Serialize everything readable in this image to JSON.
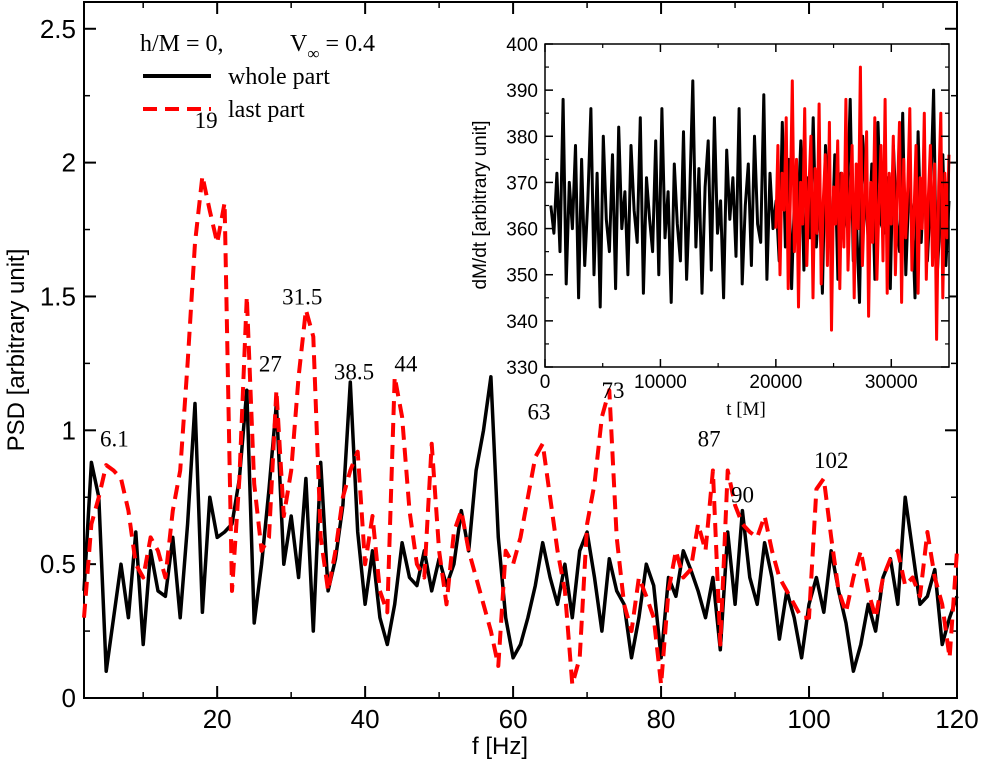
{
  "chart_data": [
    {
      "type": "line",
      "xlabel": "f [Hz]",
      "ylabel": "PSD [arbitrary unit]",
      "xlim": [
        2,
        120
      ],
      "ylim": [
        0,
        2.6
      ],
      "xticks": [
        "20",
        "40",
        "60",
        "80",
        "100",
        "120"
      ],
      "yticks": [
        "0",
        "0.5",
        "1",
        "1.5",
        "2",
        "2.5"
      ],
      "legend_title": "h/M = 0,",
      "legend_param": "V",
      "legend_param_sub": "∞",
      "legend_param_value": " = 0.4",
      "legend_position": "top-left",
      "colors": {
        "whole": "#000000",
        "last": "#ff0000"
      },
      "series": [
        {
          "name": "whole part",
          "style": "solid",
          "x": [
            2,
            3,
            4,
            5,
            6,
            7,
            8,
            9,
            10,
            11,
            12,
            13,
            14,
            15,
            16,
            17,
            18,
            19,
            20,
            21,
            22,
            23,
            24,
            25,
            26,
            27,
            28,
            29,
            30,
            31,
            32,
            33,
            34,
            35,
            36,
            37,
            38,
            39,
            40,
            41,
            42,
            43,
            44,
            45,
            46,
            47,
            48,
            49,
            50,
            51,
            52,
            53,
            54,
            55,
            56,
            57,
            58,
            59,
            60,
            61,
            62,
            63,
            64,
            65,
            66,
            67,
            68,
            69,
            70,
            71,
            72,
            73,
            74,
            75,
            76,
            77,
            78,
            79,
            80,
            81,
            82,
            83,
            84,
            85,
            86,
            87,
            88,
            89,
            90,
            91,
            92,
            93,
            94,
            95,
            96,
            97,
            98,
            99,
            100,
            101,
            102,
            103,
            104,
            105,
            106,
            107,
            108,
            109,
            110,
            111,
            112,
            113,
            114,
            115,
            116,
            117,
            118,
            119,
            120
          ],
          "y": [
            0.4,
            0.88,
            0.75,
            0.1,
            0.3,
            0.5,
            0.3,
            0.62,
            0.2,
            0.55,
            0.4,
            0.38,
            0.6,
            0.3,
            0.65,
            1.1,
            0.32,
            0.75,
            0.6,
            0.62,
            0.65,
            0.82,
            1.15,
            0.28,
            0.5,
            0.78,
            1.1,
            0.5,
            0.68,
            0.45,
            0.82,
            0.25,
            0.88,
            0.4,
            0.52,
            0.72,
            1.18,
            0.62,
            0.35,
            0.55,
            0.3,
            0.2,
            0.35,
            0.58,
            0.45,
            0.42,
            0.55,
            0.4,
            0.52,
            0.42,
            0.5,
            0.7,
            0.55,
            0.85,
            1.0,
            1.2,
            0.6,
            0.3,
            0.15,
            0.2,
            0.3,
            0.42,
            0.58,
            0.45,
            0.35,
            0.5,
            0.3,
            0.55,
            0.62,
            0.45,
            0.25,
            0.52,
            0.4,
            0.35,
            0.15,
            0.3,
            0.5,
            0.42,
            0.15,
            0.45,
            0.38,
            0.55,
            0.48,
            0.4,
            0.3,
            0.45,
            0.18,
            0.62,
            0.35,
            0.7,
            0.45,
            0.35,
            0.58,
            0.45,
            0.22,
            0.4,
            0.3,
            0.15,
            0.35,
            0.45,
            0.32,
            0.55,
            0.4,
            0.28,
            0.1,
            0.2,
            0.35,
            0.25,
            0.45,
            0.52,
            0.35,
            0.75,
            0.55,
            0.35,
            0.38,
            0.48,
            0.2,
            0.3,
            0.38
          ]
        },
        {
          "name": "last part",
          "style": "dashed",
          "x": [
            2,
            3,
            4,
            5,
            6,
            7,
            8,
            9,
            10,
            11,
            12,
            13,
            14,
            15,
            16,
            17,
            18,
            19,
            20,
            21,
            22,
            23,
            24,
            25,
            26,
            27,
            28,
            29,
            30,
            31,
            32,
            33,
            34,
            35,
            36,
            37,
            38,
            39,
            40,
            41,
            42,
            43,
            44,
            45,
            46,
            47,
            48,
            49,
            50,
            51,
            52,
            53,
            54,
            55,
            56,
            57,
            58,
            59,
            60,
            61,
            62,
            63,
            64,
            65,
            66,
            67,
            68,
            69,
            70,
            71,
            72,
            73,
            74,
            75,
            76,
            77,
            78,
            79,
            80,
            81,
            82,
            83,
            84,
            85,
            86,
            87,
            88,
            89,
            90,
            91,
            92,
            93,
            94,
            95,
            96,
            97,
            98,
            99,
            100,
            101,
            102,
            103,
            104,
            105,
            106,
            107,
            108,
            109,
            110,
            111,
            112,
            113,
            114,
            115,
            116,
            117,
            118,
            119,
            120
          ],
          "y": [
            0.3,
            0.65,
            0.75,
            0.87,
            0.85,
            0.82,
            0.7,
            0.5,
            0.45,
            0.6,
            0.55,
            0.45,
            0.7,
            0.85,
            1.25,
            1.7,
            1.95,
            1.82,
            1.7,
            1.85,
            0.4,
            0.82,
            1.5,
            0.8,
            0.55,
            0.6,
            1.15,
            0.68,
            0.85,
            1.2,
            1.45,
            1.35,
            0.6,
            0.4,
            0.55,
            0.75,
            0.85,
            0.92,
            0.5,
            0.68,
            0.4,
            0.32,
            1.2,
            1.05,
            0.7,
            0.5,
            0.45,
            0.95,
            0.55,
            0.35,
            0.62,
            0.7,
            0.55,
            0.45,
            0.35,
            0.25,
            0.12,
            0.55,
            0.5,
            0.6,
            0.75,
            0.9,
            0.95,
            0.75,
            0.55,
            0.4,
            0.05,
            0.15,
            0.65,
            0.8,
            1.05,
            1.15,
            0.6,
            0.35,
            0.25,
            0.45,
            0.38,
            0.3,
            0.05,
            0.4,
            0.55,
            0.45,
            0.48,
            0.65,
            0.55,
            0.85,
            0.2,
            0.85,
            0.72,
            0.65,
            0.62,
            0.6,
            0.68,
            0.55,
            0.45,
            0.4,
            0.35,
            0.3,
            0.3,
            0.78,
            0.82,
            0.6,
            0.4,
            0.32,
            0.45,
            0.55,
            0.4,
            0.3,
            0.45,
            0.52,
            0.55,
            0.42,
            0.45,
            0.38,
            0.62,
            0.45,
            0.35,
            0.15,
            0.55
          ]
        }
      ],
      "annotations": [
        {
          "text": "6.1",
          "x": 6.1,
          "y": 0.94
        },
        {
          "text": "19",
          "x": 18.5,
          "y": 2.13
        },
        {
          "text": "27",
          "x": 27.2,
          "y": 1.22
        },
        {
          "text": "31.5",
          "x": 31.5,
          "y": 1.47
        },
        {
          "text": "38.5",
          "x": 38.5,
          "y": 1.19
        },
        {
          "text": "44",
          "x": 45.5,
          "y": 1.22
        },
        {
          "text": "63",
          "x": 63.5,
          "y": 1.04
        },
        {
          "text": "73",
          "x": 73.5,
          "y": 1.12
        },
        {
          "text": "87",
          "x": 86.5,
          "y": 0.94
        },
        {
          "text": "90",
          "x": 91.0,
          "y": 0.73
        },
        {
          "text": "102",
          "x": 103.0,
          "y": 0.86
        }
      ]
    },
    {
      "type": "line",
      "xlabel": "t [M]",
      "ylabel": "dM/dt [arbitrary unit]",
      "xlim": [
        0,
        35000
      ],
      "ylim": [
        330,
        400
      ],
      "xticks": [
        "0",
        "10000",
        "20000",
        "30000"
      ],
      "yticks": [
        "330",
        "340",
        "350",
        "360",
        "370",
        "380",
        "390",
        "400"
      ],
      "series": [
        {
          "name": "whole part",
          "t_start": 500,
          "t_end": 35000,
          "y": [
            365,
            359,
            372,
            355,
            388,
            348,
            370,
            360,
            378,
            345,
            375,
            352,
            366,
            386,
            350,
            372,
            343,
            380,
            362,
            355,
            376,
            347,
            382,
            360,
            368,
            350,
            378,
            364,
            357,
            384,
            346,
            371,
            362,
            355,
            379,
            350,
            386,
            358,
            368,
            344,
            374,
            361,
            353,
            381,
            349,
            367,
            392,
            356,
            373,
            346,
            369,
            379,
            351,
            384,
            359,
            366,
            345,
            377,
            362,
            371,
            354,
            386,
            348,
            365,
            374,
            352,
            380,
            361,
            357,
            389,
            349,
            372,
            360,
            366,
            353,
            383,
            356,
            375,
            347,
            368,
            362,
            379,
            351,
            371,
            358,
            384,
            356,
            367,
            346,
            378,
            363,
            355,
            376,
            349,
            372,
            360,
            365,
            388,
            353,
            362,
            344,
            380,
            367,
            356,
            374,
            349,
            383,
            361,
            359,
            371,
            347,
            378,
            362,
            355,
            385,
            350,
            369,
            364,
            345,
            381,
            357,
            372,
            353,
            367,
            390,
            348,
            360,
            376,
            352,
            366
          ]
        },
        {
          "name": "last part",
          "t_start": 20000,
          "t_end": 35000,
          "y": [
            360,
            378,
            350,
            372,
            364,
            384,
            347,
            366,
            392,
            355,
            375,
            343,
            370,
            361,
            386,
            352,
            368,
            380,
            345,
            373,
            359,
            387,
            348,
            366,
            376,
            352,
            383,
            338,
            369,
            361,
            379,
            347,
            372,
            356,
            388,
            351,
            367,
            378,
            345,
            374,
            360,
            395,
            352,
            366,
            381,
            341,
            370,
            357,
            384,
            349,
            365,
            378,
            353,
            388,
            346,
            372,
            361,
            380,
            350,
            368,
            383,
            344,
            375,
            358,
            369,
            386,
            351,
            363,
            378,
            346,
            371,
            360,
            385,
            349,
            367,
            378,
            352,
            374,
            336,
            369,
            385,
            345,
            372,
            358,
            376
          ]
        }
      ]
    }
  ]
}
